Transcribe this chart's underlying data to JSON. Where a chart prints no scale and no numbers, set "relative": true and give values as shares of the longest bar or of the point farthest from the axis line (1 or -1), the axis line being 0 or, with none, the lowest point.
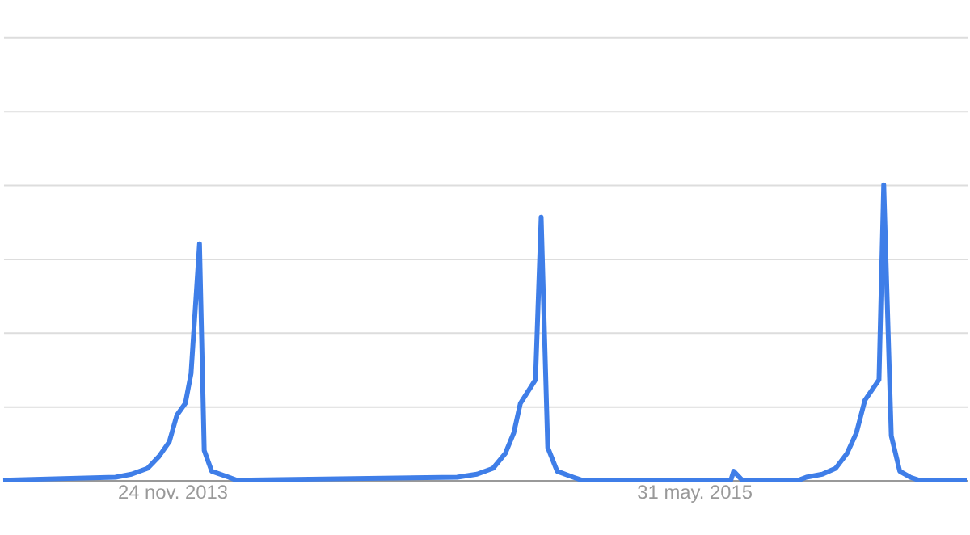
{
  "chart_data": {
    "type": "line",
    "relative": true,
    "color": "#3f7ee8",
    "grid": "y",
    "line_style": "solid",
    "marker": "none",
    "x": [
      "2013-05-29",
      "2013-09-25",
      "2013-10-12",
      "2013-10-29",
      "2013-11-10",
      "2013-11-21",
      "2013-11-29",
      "2013-12-08",
      "2013-12-14",
      "2013-12-23",
      "2013-12-28",
      "2014-01-05",
      "2014-01-23",
      "2014-01-31",
      "2014-09-22",
      "2014-10-13",
      "2014-10-30",
      "2014-11-12",
      "2014-11-21",
      "2014-11-28",
      "2014-12-14",
      "2014-12-20",
      "2014-12-27",
      "2015-01-06",
      "2015-01-23",
      "2015-02-01",
      "2015-05-02",
      "2015-07-09",
      "2015-07-12",
      "2015-07-21",
      "2015-09-19",
      "2015-09-27",
      "2015-10-14",
      "2015-10-28",
      "2015-11-09",
      "2015-11-19",
      "2015-11-28",
      "2015-12-13",
      "2015-12-18",
      "2015-12-26",
      "2016-01-04",
      "2016-01-15",
      "2016-01-24",
      "2016-03-15"
    ],
    "values": [
      0,
      0.01,
      0.02,
      0.04,
      0.08,
      0.13,
      0.22,
      0.26,
      0.36,
      0.8,
      0.1,
      0.03,
      0.01,
      0,
      0.01,
      0.02,
      0.04,
      0.09,
      0.16,
      0.26,
      0.34,
      0.89,
      0.11,
      0.03,
      0.01,
      0,
      0,
      0,
      0.03,
      0,
      0,
      0.01,
      0.02,
      0.04,
      0.09,
      0.16,
      0.27,
      0.34,
      1,
      0.15,
      0.03,
      0.01,
      0,
      0
    ],
    "xlim": [
      "2013-05-29",
      "2016-03-15"
    ],
    "xticks": [
      {
        "value": "2013-11-24",
        "label": "24 nov. 2013"
      },
      {
        "value": "2015-05-31",
        "label": "31 may. 2015"
      }
    ]
  }
}
